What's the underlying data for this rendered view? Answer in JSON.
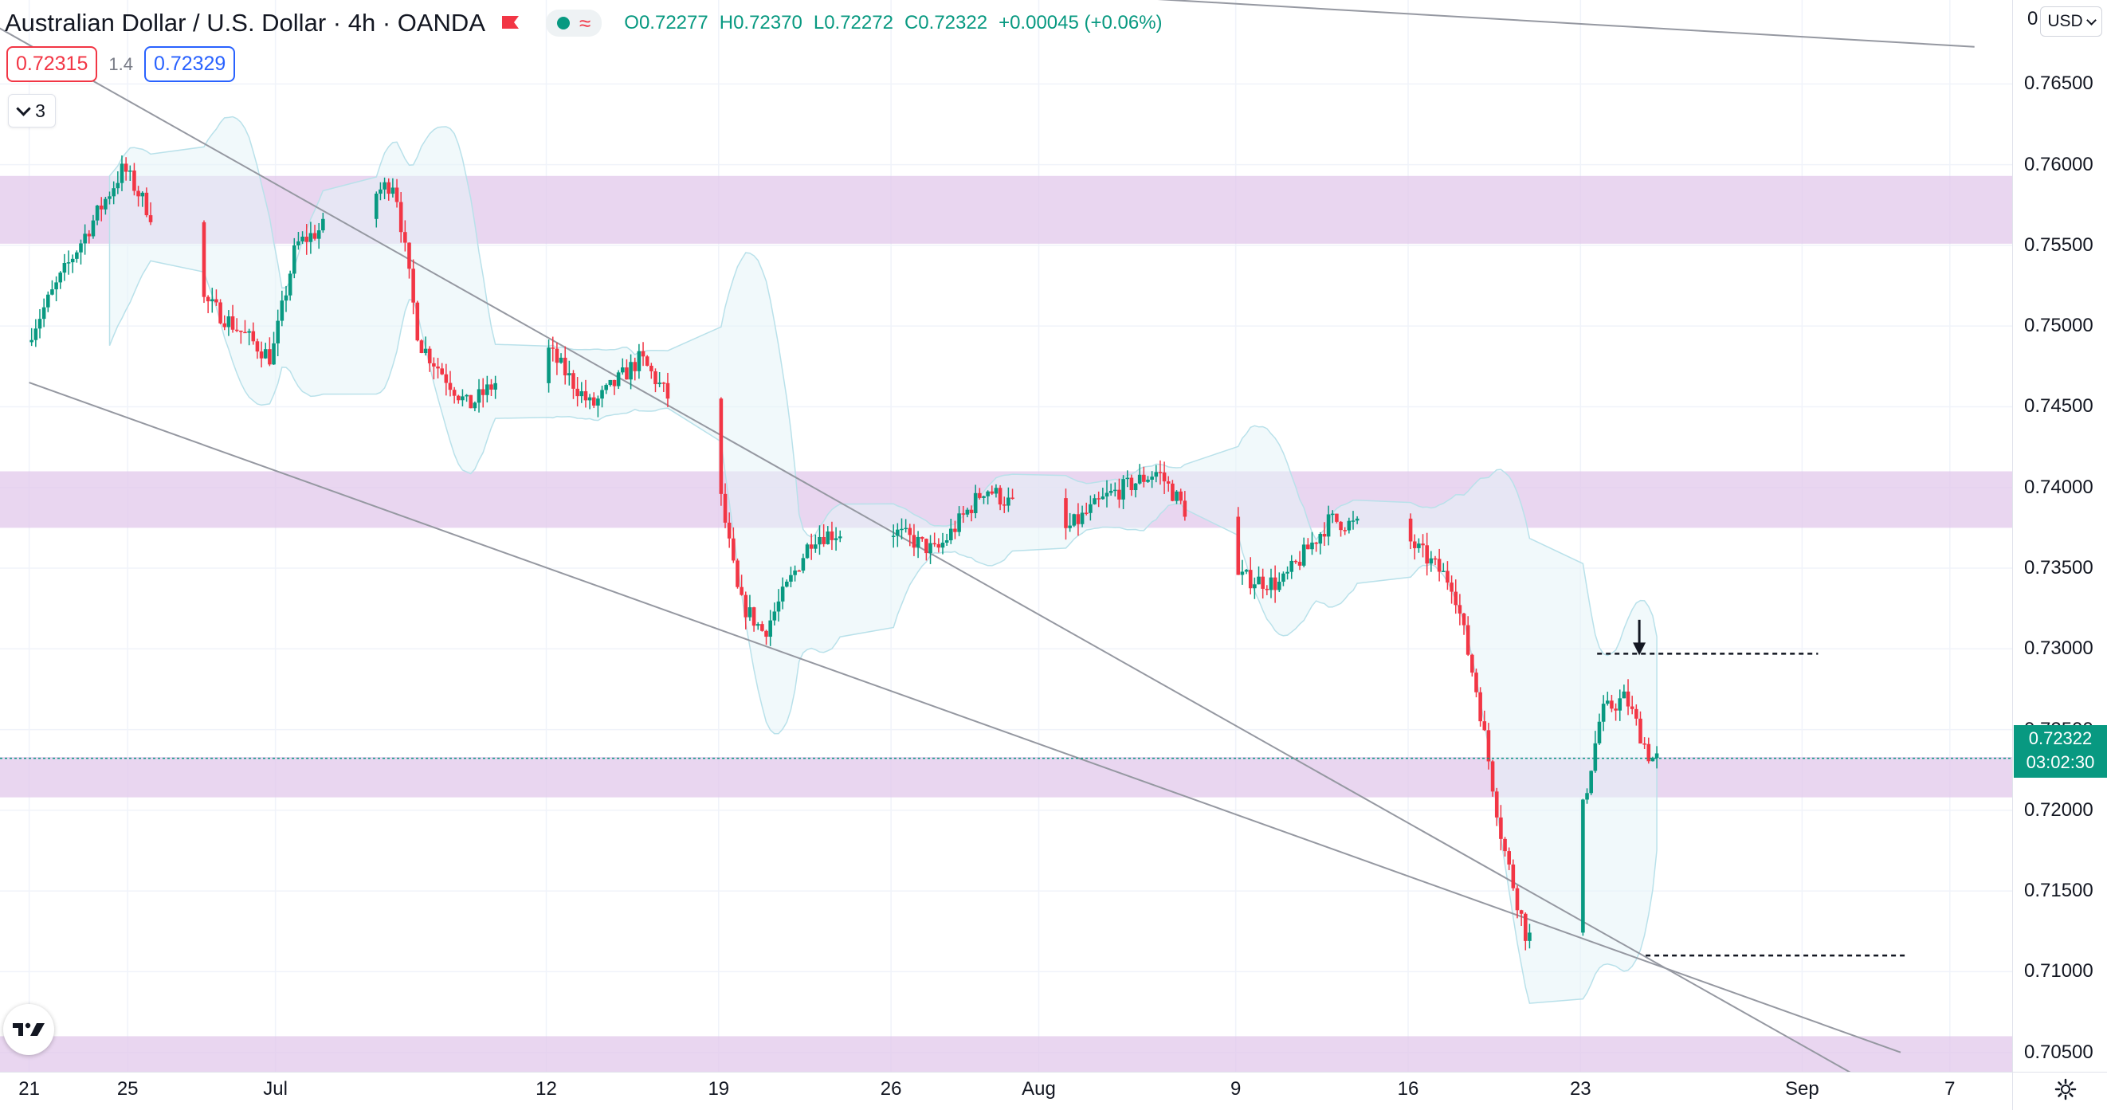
{
  "header": {
    "symbol_name": "Australian Dollar / U.S. Dollar",
    "interval": "4h",
    "broker": "OANDA",
    "ohlc": {
      "open_label": "O",
      "open": "0.72277",
      "high_label": "H",
      "high": "0.72370",
      "low_label": "L",
      "low": "0.72272",
      "close_label": "C",
      "close": "0.72322",
      "change": "+0.00045 (+0.06%)"
    }
  },
  "trade": {
    "sell_price": "0.72315",
    "spread": "1.4",
    "buy_price": "0.72329"
  },
  "indicators_collapse": {
    "count": "3"
  },
  "price_axis": {
    "currency": "USD",
    "partial_label": "0",
    "current_price": "0.72322",
    "countdown": "03:02:30"
  },
  "colors": {
    "up": "#089981",
    "down": "#f23645",
    "zone": "#e1c8eb",
    "band_fill": "#e6f4f8",
    "channel": "#9598a1"
  },
  "icons": [
    "flag-icon",
    "dot-icon",
    "approx-icon",
    "chevron-down-icon",
    "gear-icon",
    "tradingview-logo",
    "arrow-down-icon"
  ],
  "chart_data": {
    "type": "candlestick",
    "title": "Australian Dollar / U.S. Dollar",
    "y_ticks": [
      "0.76500",
      "0.76000",
      "0.75500",
      "0.75000",
      "0.74500",
      "0.74000",
      "0.73500",
      "0.73000",
      "0.72500",
      "0.72000",
      "0.71500",
      "0.71000",
      "0.70500"
    ],
    "x_ticks": [
      "21",
      "25",
      "Jul",
      "12",
      "19",
      "26",
      "Aug",
      "9",
      "16",
      "23",
      "Sep",
      "7"
    ],
    "ylim": [
      0.7038,
      0.7702
    ],
    "path_points": [
      [
        "Jun 21",
        0.749
      ],
      [
        "Jun 23",
        0.7545
      ],
      [
        "Jun 25",
        0.7598
      ],
      [
        "Jun 28",
        0.752
      ],
      [
        "Jul 1",
        0.748
      ],
      [
        "Jul 2",
        0.755
      ],
      [
        "Jul 6",
        0.759
      ],
      [
        "Jul 7",
        0.749
      ],
      [
        "Jul 9",
        0.745
      ],
      [
        "Jul 12",
        0.749
      ],
      [
        "Jul 14",
        0.745
      ],
      [
        "Jul 16",
        0.748
      ],
      [
        "Jul 19",
        0.7415
      ],
      [
        "Jul 20",
        0.733
      ],
      [
        "Jul 21",
        0.731
      ],
      [
        "Jul 23",
        0.737
      ],
      [
        "Jul 26",
        0.7375
      ],
      [
        "Jul 28",
        0.736
      ],
      [
        "Jul 30",
        0.74
      ],
      [
        "Aug 2",
        0.737
      ],
      [
        "Aug 4",
        0.7395
      ],
      [
        "Aug 6",
        0.741
      ],
      [
        "Aug 9",
        0.7345
      ],
      [
        "Aug 11",
        0.734
      ],
      [
        "Aug 13",
        0.738
      ],
      [
        "Aug 16",
        0.737
      ],
      [
        "Aug 18",
        0.734
      ],
      [
        "Aug 19",
        0.727
      ],
      [
        "Aug 20",
        0.718
      ],
      [
        "Aug 21",
        0.712
      ],
      [
        "Aug 22",
        0.714
      ],
      [
        "Aug 23",
        0.718
      ],
      [
        "Aug 24",
        0.726
      ],
      [
        "Aug 25",
        0.727
      ],
      [
        "Aug 26",
        0.7232
      ]
    ],
    "zones": [
      [
        0.7551,
        0.7593
      ],
      [
        0.7375,
        0.741
      ],
      [
        0.7208,
        0.7233
      ],
      [
        0.7025,
        0.706
      ]
    ],
    "channel_lines": [
      [
        [
          "Jun 18",
          0.77
        ],
        [
          "Sep 5",
          0.702
        ]
      ],
      [
        [
          "Jun 21",
          0.7465
        ],
        [
          "Sep 5",
          0.705
        ]
      ],
      [
        [
          "Aug 3",
          0.7705
        ],
        [
          "Sep 8",
          0.7673
        ]
      ]
    ],
    "levels": [
      {
        "from": "Aug 24",
        "to": "Sep 1",
        "price": 0.7297
      },
      {
        "from": "Aug 25",
        "to": "Sep 5",
        "price": 0.711
      }
    ],
    "annotation": {
      "type": "arrow-down",
      "date": "Aug 25",
      "from": 0.7318,
      "to": 0.7296
    }
  }
}
